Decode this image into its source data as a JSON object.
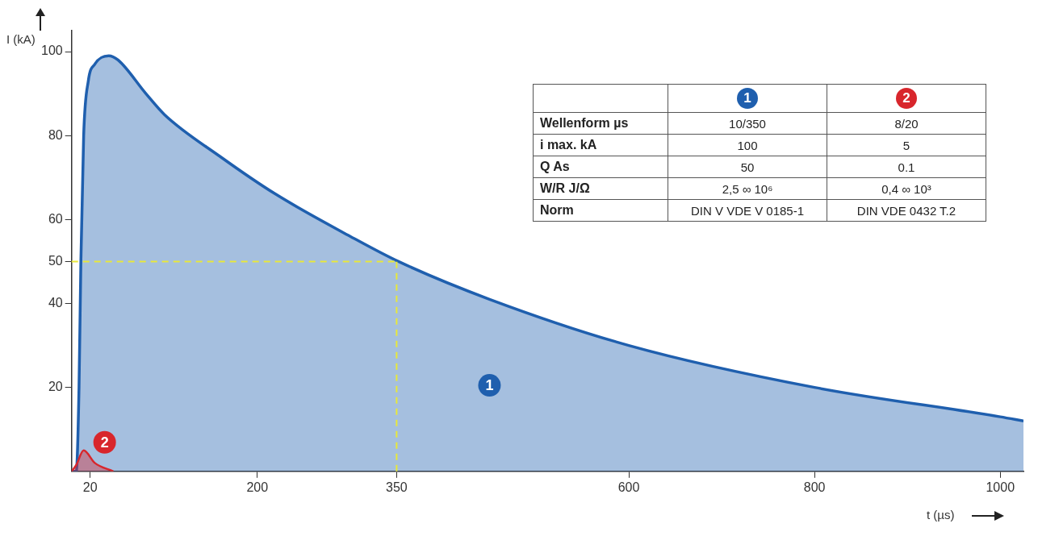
{
  "chart_data": {
    "type": "area",
    "xlabel": "t (µs)",
    "ylabel": "I (kA)",
    "xlim": [
      0,
      1025
    ],
    "xticks": [
      20,
      200,
      350,
      600,
      800,
      1000
    ],
    "ylim": [
      0,
      105
    ],
    "yticks": [
      20,
      40,
      50,
      60,
      80,
      100
    ],
    "series": [
      {
        "name": "1",
        "color": "#1f5fae",
        "x": [
          0,
          5,
          8,
          10,
          13,
          18,
          25,
          40,
          50,
          80,
          100,
          160,
          220,
          300,
          352,
          450,
          600,
          800,
          1000,
          1025
        ],
        "values": [
          0,
          0,
          20,
          50,
          80,
          93,
          97,
          99,
          98,
          90,
          85,
          75,
          66,
          56,
          50,
          41,
          30,
          20,
          13,
          12
        ]
      },
      {
        "name": "2",
        "color": "#d8262c",
        "x": [
          0,
          5,
          13,
          25,
          45
        ],
        "values": [
          0,
          1.5,
          5,
          2,
          0
        ]
      }
    ],
    "ref_lines": [
      {
        "axis": "y",
        "value": 50,
        "color": "#e8e83a",
        "line_style": "dashed"
      },
      {
        "axis": "x",
        "value": 350,
        "color": "#e8e83a",
        "line_style": "dashed"
      }
    ],
    "annotations": [
      "Wellenform µs",
      "10/350",
      "8/20",
      "i max. kA",
      "100",
      "5",
      "Q As",
      "50",
      "0.1",
      "W/R J/Ω",
      "2,5 ∞ 10⁶",
      "0,4 ∞ 10³",
      "Norm",
      "DIN V VDE V 0185-1",
      "DIN VDE 0432 T.2"
    ]
  }
}
